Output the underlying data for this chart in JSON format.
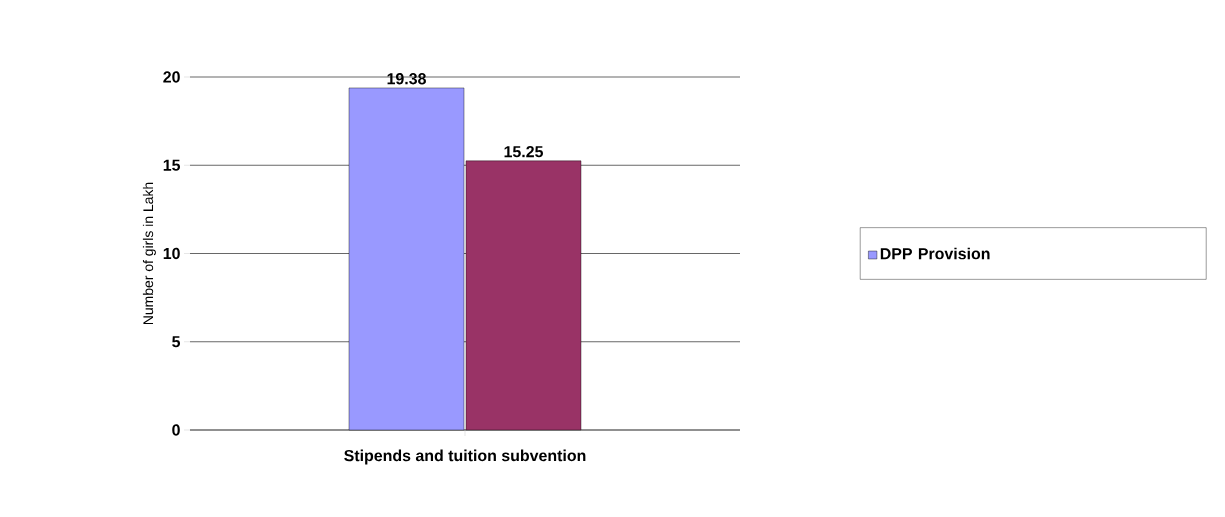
{
  "chart_data": {
    "type": "bar",
    "ylabel": "Number  of girls in Lakh",
    "categories": [
      "Stipends and tuition subvention"
    ],
    "series": [
      {
        "name": "DPP Provision",
        "color": "#9999ff",
        "values": [
          19.38
        ]
      },
      {
        "color": "#993366",
        "values": [
          15.25
        ]
      }
    ],
    "ylim": [
      0,
      20
    ],
    "yticks": [
      0,
      5,
      10,
      15,
      20
    ],
    "grid": "y",
    "legend": "right",
    "data_labels": true
  }
}
